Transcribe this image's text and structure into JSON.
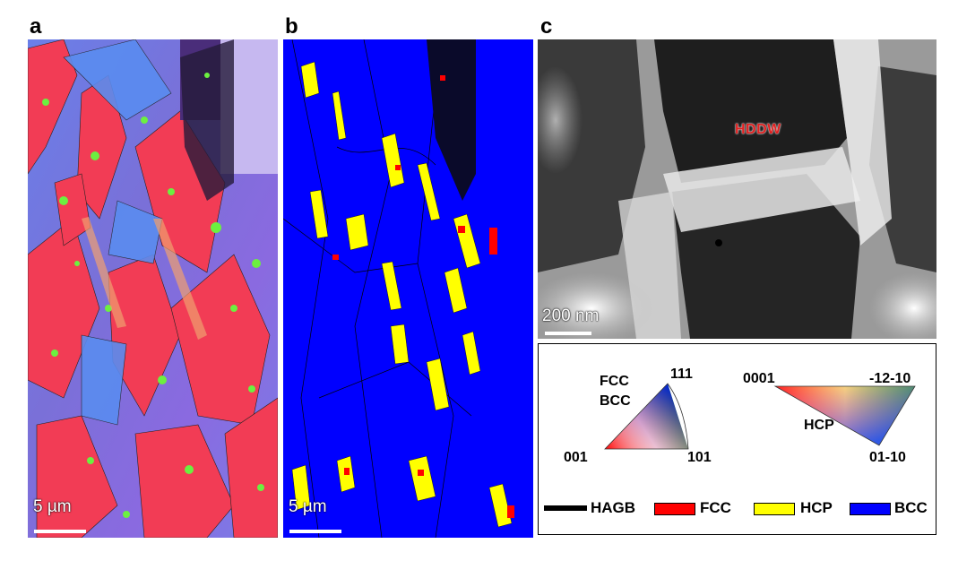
{
  "panels": {
    "a": {
      "letter": "a",
      "scale_text": "5 µm"
    },
    "b": {
      "letter": "b",
      "scale_text": "5 µm"
    },
    "c": {
      "letter": "c",
      "scale_text": "200 nm",
      "annotation": "HDDW"
    }
  },
  "legend": {
    "cubic_label_fcc": "FCC",
    "cubic_label_bcc": "BCC",
    "cubic_corner_top": "111",
    "cubic_corner_left": "001",
    "cubic_corner_right": "101",
    "hex_corner_left": "0001",
    "hex_corner_right": "-12-10",
    "hex_corner_bottom": "01-10",
    "hex_label": "HCP",
    "keys": [
      {
        "label": "HAGB",
        "color": "#000000"
      },
      {
        "label": "FCC",
        "color": "#ff0000"
      },
      {
        "label": "HCP",
        "color": "#ffff00"
      },
      {
        "label": "BCC",
        "color": "#0000ff"
      }
    ]
  }
}
